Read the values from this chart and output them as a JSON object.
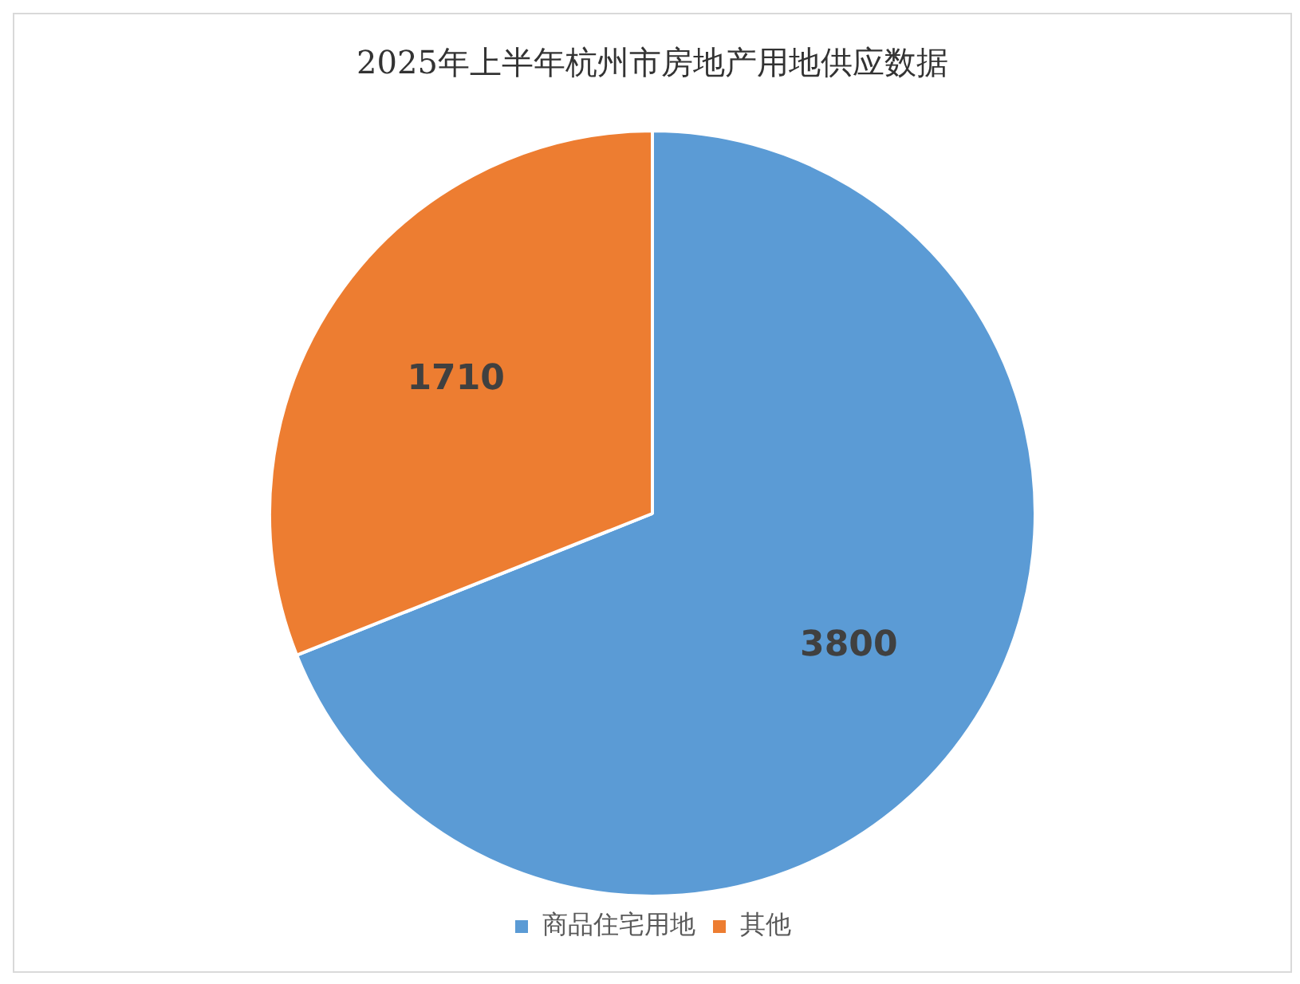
{
  "chart_data": {
    "type": "pie",
    "title": "2025年上半年杭州市房地产用地供应数据",
    "categories": [
      "商品住宅用地",
      "其他"
    ],
    "values": [
      3800,
      1710
    ],
    "colors": [
      "#5b9bd5",
      "#ed7d31"
    ],
    "data_labels": true,
    "legend": "bottom"
  }
}
